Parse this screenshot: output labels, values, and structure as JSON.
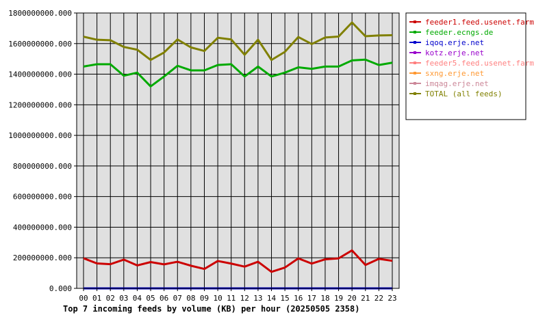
{
  "chart_data": {
    "type": "line",
    "title": "Top 7 incoming feeds by volume (KB) per hour (20250505 2358)",
    "x": [
      "00",
      "01",
      "02",
      "03",
      "04",
      "05",
      "06",
      "07",
      "08",
      "09",
      "10",
      "11",
      "12",
      "13",
      "14",
      "15",
      "16",
      "17",
      "18",
      "19",
      "20",
      "21",
      "22",
      "23"
    ],
    "ylim": [
      0,
      1800000000
    ],
    "yticks": [
      0,
      200000000,
      400000000,
      600000000,
      800000000,
      1000000000,
      1200000000,
      1400000000,
      1600000000,
      1800000000
    ],
    "ytick_labels": [
      "0.000",
      "200000000.000",
      "400000000.000",
      "600000000.000",
      "800000000.000",
      "1000000000.000",
      "1200000000.000",
      "1400000000.000",
      "1600000000.000",
      "1800000000.000"
    ],
    "grid": true,
    "legend_position": "right",
    "background": "#e0e0e0",
    "series": [
      {
        "name": "feeder1.feed.usenet.farm",
        "color": "#cc0000",
        "values": [
          197000000,
          163000000,
          158000000,
          188000000,
          150000000,
          172000000,
          157000000,
          174000000,
          148000000,
          127000000,
          179000000,
          162000000,
          142000000,
          174000000,
          108000000,
          136000000,
          196000000,
          162000000,
          190000000,
          196000000,
          248000000,
          153000000,
          193000000,
          180000000
        ]
      },
      {
        "name": "feeder.ecngs.de",
        "color": "#00aa00",
        "values": [
          1450000000,
          1465000000,
          1465000000,
          1390000000,
          1410000000,
          1320000000,
          1385000000,
          1455000000,
          1425000000,
          1425000000,
          1460000000,
          1465000000,
          1385000000,
          1450000000,
          1385000000,
          1410000000,
          1445000000,
          1435000000,
          1450000000,
          1450000000,
          1490000000,
          1495000000,
          1460000000,
          1475000000
        ]
      },
      {
        "name": "iqoq.erje.net",
        "color": "#0000cc",
        "values": [
          0,
          0,
          0,
          0,
          0,
          0,
          0,
          0,
          0,
          0,
          0,
          0,
          0,
          0,
          0,
          0,
          0,
          0,
          0,
          0,
          0,
          0,
          0,
          0
        ]
      },
      {
        "name": "kotz.erje.net",
        "color": "#9900cc",
        "values": [
          0,
          0,
          0,
          0,
          0,
          0,
          0,
          0,
          0,
          0,
          0,
          0,
          0,
          0,
          0,
          0,
          0,
          0,
          0,
          0,
          0,
          0,
          0,
          0
        ]
      },
      {
        "name": "feeder5.feed.usenet.farm",
        "color": "#ff8080",
        "values": [
          0,
          0,
          0,
          0,
          0,
          0,
          0,
          0,
          0,
          0,
          0,
          0,
          0,
          0,
          0,
          0,
          0,
          0,
          0,
          0,
          0,
          0,
          0,
          0
        ]
      },
      {
        "name": "sxng.erje.net",
        "color": "#ff9933",
        "values": [
          0,
          0,
          0,
          0,
          0,
          0,
          0,
          0,
          0,
          0,
          0,
          0,
          0,
          0,
          0,
          0,
          0,
          0,
          0,
          0,
          0,
          0,
          0,
          0
        ]
      },
      {
        "name": "imqag.erje.net",
        "color": "#cc8899",
        "values": [
          0,
          0,
          0,
          0,
          0,
          0,
          0,
          0,
          0,
          0,
          0,
          0,
          0,
          0,
          0,
          0,
          0,
          0,
          0,
          0,
          0,
          0,
          0,
          0
        ]
      },
      {
        "name": "TOTAL (all feeds)",
        "color": "#808000",
        "values": [
          1645000000,
          1625000000,
          1622000000,
          1578000000,
          1560000000,
          1493000000,
          1542000000,
          1627000000,
          1575000000,
          1552000000,
          1638000000,
          1627000000,
          1527000000,
          1625000000,
          1493000000,
          1546000000,
          1643000000,
          1597000000,
          1640000000,
          1646000000,
          1738000000,
          1648000000,
          1653000000,
          1655000000
        ]
      }
    ]
  }
}
